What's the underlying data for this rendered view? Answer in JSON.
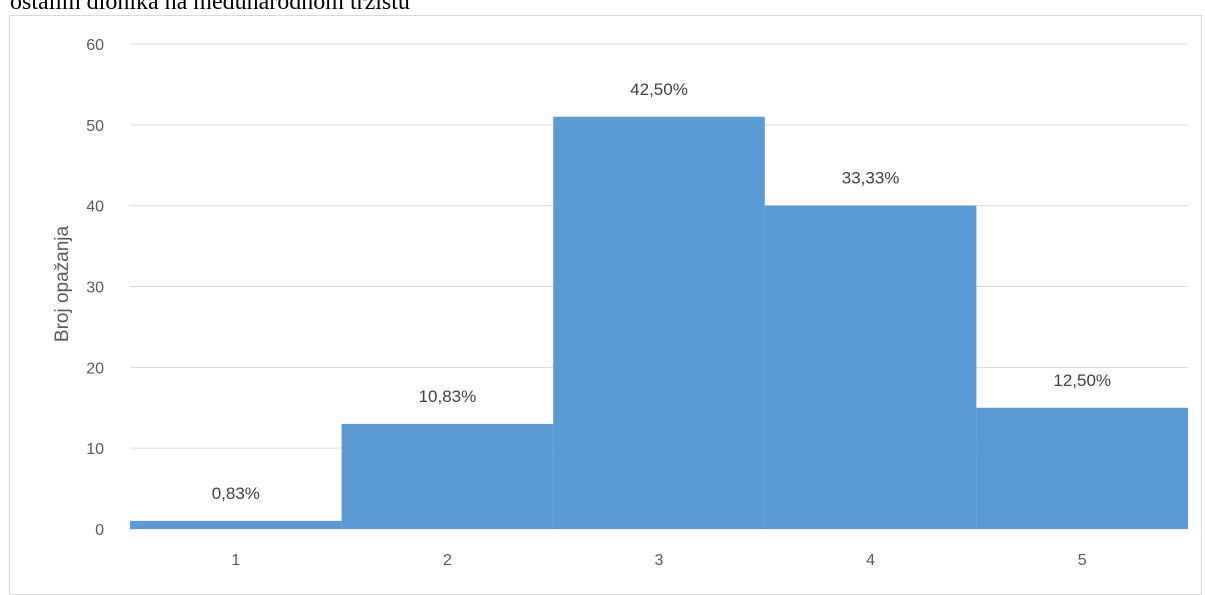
{
  "caption": "ostalim dionika na međunarodnom tržištu",
  "chart_data": {
    "type": "bar",
    "title": "",
    "xlabel": "",
    "ylabel": "Broj opažanja",
    "categories": [
      "1",
      "2",
      "3",
      "4",
      "5"
    ],
    "values": [
      1,
      13,
      51,
      40,
      15
    ],
    "data_labels": [
      "0,83%",
      "10,83%",
      "42,50%",
      "33,33%",
      "12,50%"
    ],
    "ylim": [
      0,
      60
    ],
    "yticks": [
      "0",
      "10",
      "20",
      "30",
      "40",
      "50",
      "60"
    ],
    "grid": true,
    "legend": "none",
    "bar_gap": 0,
    "colors": {
      "bar": "#5b9bd5",
      "grid": "#d9d9d9",
      "axis_text": "#595959",
      "label_text": "#404040"
    }
  }
}
